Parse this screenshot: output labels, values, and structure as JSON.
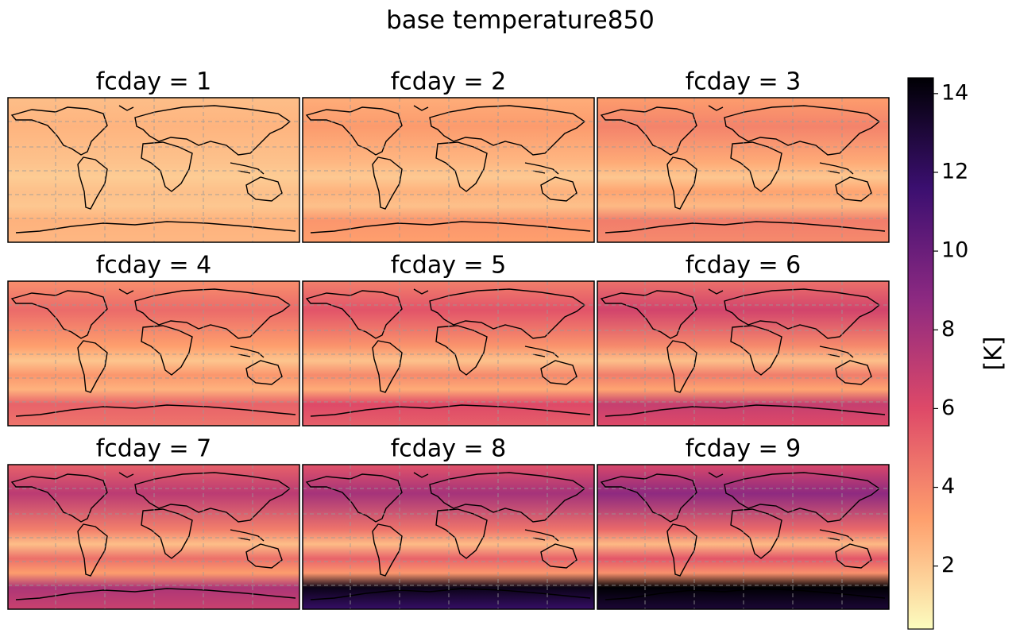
{
  "title": "base temperature850",
  "panels": [
    {
      "title": "fcday = 1"
    },
    {
      "title": "fcday = 2"
    },
    {
      "title": "fcday = 3"
    },
    {
      "title": "fcday = 4"
    },
    {
      "title": "fcday = 5"
    },
    {
      "title": "fcday = 6"
    },
    {
      "title": "fcday = 7"
    },
    {
      "title": "fcday = 8"
    },
    {
      "title": "fcday = 9"
    }
  ],
  "colorbar": {
    "label": "[K]",
    "lim": [
      0.4,
      14.4
    ],
    "ticks": [
      2,
      4,
      6,
      8,
      10,
      12,
      14
    ],
    "cmap": "magma_r"
  }
}
